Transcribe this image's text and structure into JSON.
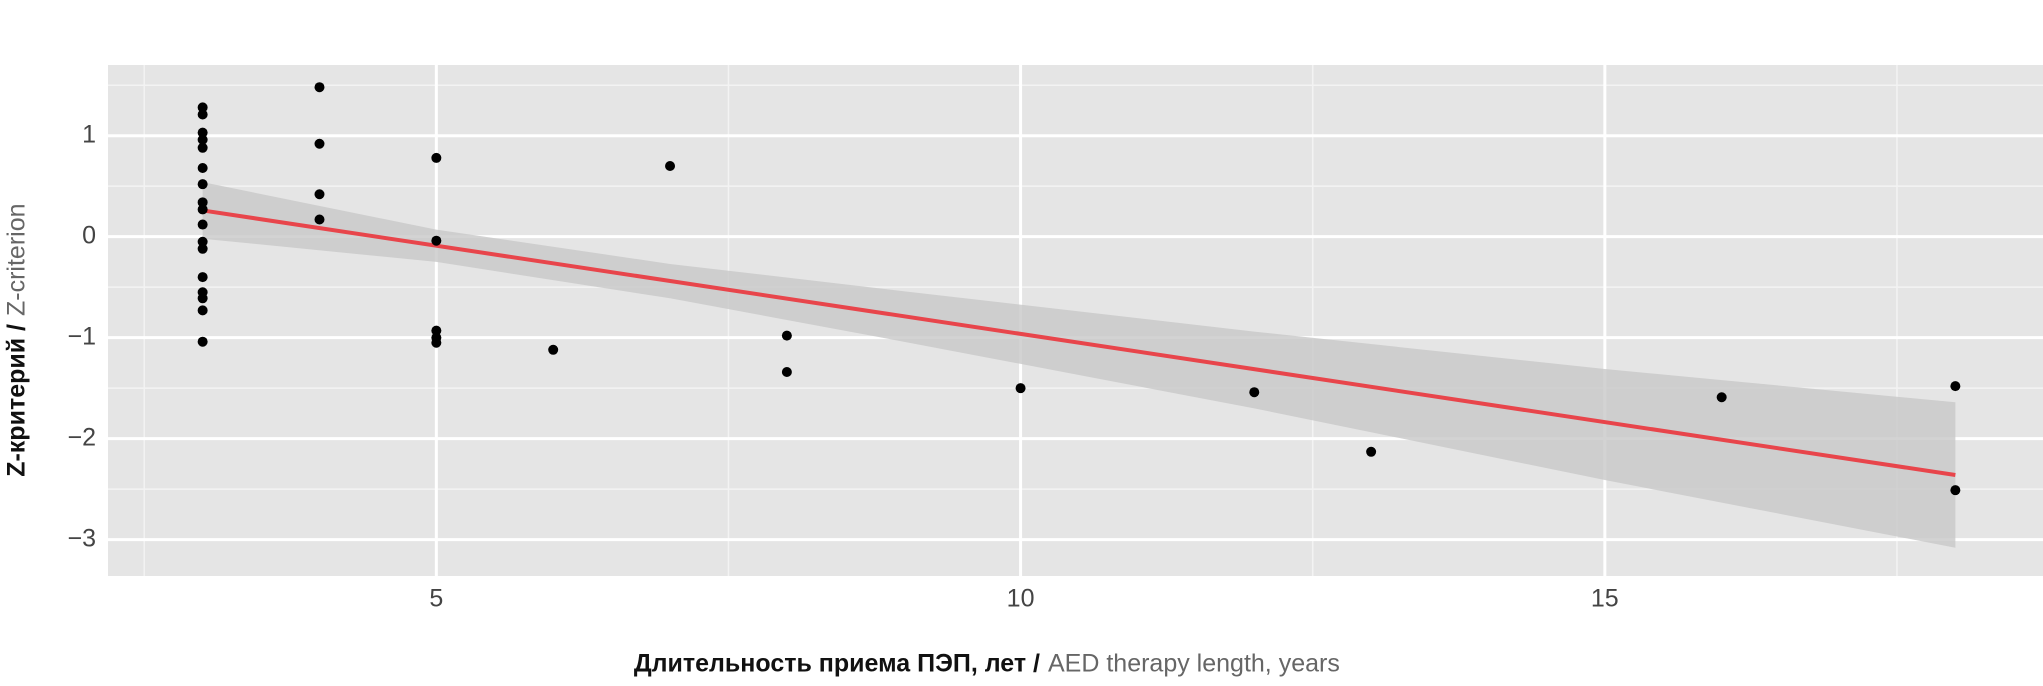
{
  "chart_data": {
    "type": "scatter",
    "x_label": [
      "Длительность приема ПЭП, лет /",
      "AED therapy length, years"
    ],
    "y_label": [
      "Z-критерий /",
      "Z-criterion"
    ],
    "xlim": [
      2.19,
      18.75
    ],
    "ylim": [
      -3.36,
      1.7
    ],
    "xticks": [
      5,
      10,
      15
    ],
    "yticks": [
      1,
      0,
      {
        "value": -1,
        "label": "−1"
      },
      {
        "value": -2,
        "label": "−2"
      },
      {
        "value": -3,
        "label": "−3"
      }
    ],
    "x_minor_ticks": [
      2.5,
      7.5,
      12.5,
      17.5
    ],
    "y_minor_ticks": [
      1.5,
      0.5,
      -0.5,
      -1.5,
      -2.5
    ],
    "grid": true,
    "points": {
      "color": "#000000",
      "x": [
        3,
        3,
        3,
        3,
        3,
        3,
        3,
        3,
        3,
        3,
        3,
        3,
        3,
        3,
        3,
        3,
        3,
        4,
        4,
        4,
        4,
        5,
        5,
        5,
        5,
        5,
        6,
        7,
        8,
        8,
        10,
        12,
        13,
        16,
        18,
        18
      ],
      "y": [
        1.28,
        1.21,
        1.03,
        0.96,
        0.88,
        0.68,
        0.52,
        0.34,
        0.27,
        0.12,
        -0.05,
        -0.12,
        -0.4,
        -0.55,
        -0.61,
        -0.73,
        -1.04,
        1.48,
        0.92,
        0.42,
        0.17,
        0.78,
        -0.04,
        -0.93,
        -1.0,
        -1.05,
        -1.12,
        0.7,
        -0.98,
        -1.34,
        -1.5,
        -1.54,
        -2.13,
        -1.59,
        -1.48,
        -2.51
      ]
    },
    "fit": {
      "color": "#e8454b",
      "x": [
        3,
        18
      ],
      "y": [
        0.26,
        -2.36
      ]
    },
    "band": {
      "color": "#c8c8c8",
      "x": [
        3,
        5,
        7,
        9,
        12,
        15,
        18
      ],
      "upper": [
        0.54,
        0.07,
        -0.27,
        -0.54,
        -0.94,
        -1.31,
        -1.64
      ],
      "lower": [
        -0.02,
        -0.25,
        -0.61,
        -1.04,
        -1.7,
        -2.41,
        -3.08
      ]
    }
  }
}
